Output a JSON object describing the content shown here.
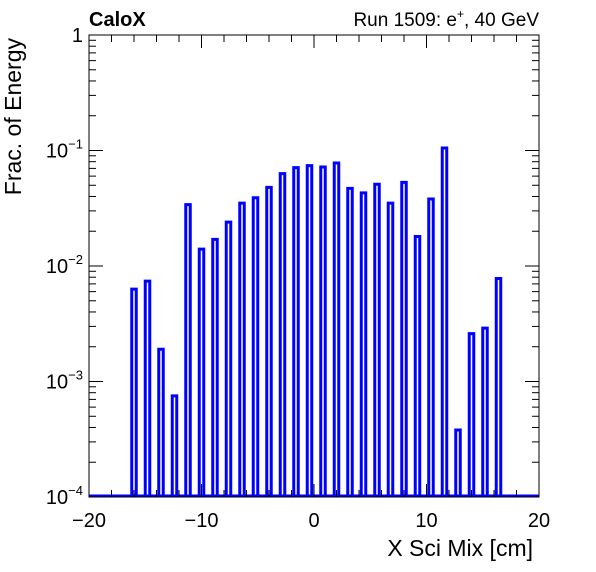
{
  "chart_data": {
    "type": "bar",
    "header_left": "CaloX",
    "header_right_prefix": "Run 1509: e",
    "header_right_sup": "+",
    "header_right_suffix": ", 40 GeV",
    "xlabel": "X Sci Mix [cm]",
    "ylabel": "Frac. of Energy",
    "xlim": [
      -20,
      20
    ],
    "ylim": [
      0.0001,
      1
    ],
    "yscale": "log",
    "xticks": [
      {
        "value": -20,
        "label": "−20"
      },
      {
        "value": -10,
        "label": "−10"
      },
      {
        "value": 0,
        "label": "0"
      },
      {
        "value": 10,
        "label": "10"
      },
      {
        "value": 20,
        "label": "20"
      }
    ],
    "yticks": [
      {
        "value": 1,
        "base": "1",
        "exp": ""
      },
      {
        "value": 0.1,
        "base": "10",
        "exp": "−1"
      },
      {
        "value": 0.01,
        "base": "10",
        "exp": "−2"
      },
      {
        "value": 0.001,
        "base": "10",
        "exp": "−3"
      },
      {
        "value": 0.0001,
        "base": "10",
        "exp": "−4"
      }
    ],
    "bar_width_cm": 0.4,
    "bins": [
      {
        "x": -16.0,
        "y": 0.0063
      },
      {
        "x": -14.8,
        "y": 0.0074
      },
      {
        "x": -13.6,
        "y": 0.0019
      },
      {
        "x": -12.4,
        "y": 0.00075
      },
      {
        "x": -11.2,
        "y": 0.034
      },
      {
        "x": -10.0,
        "y": 0.014
      },
      {
        "x": -8.8,
        "y": 0.017
      },
      {
        "x": -7.6,
        "y": 0.024
      },
      {
        "x": -6.4,
        "y": 0.035
      },
      {
        "x": -5.2,
        "y": 0.039
      },
      {
        "x": -4.0,
        "y": 0.048
      },
      {
        "x": -2.8,
        "y": 0.063
      },
      {
        "x": -1.6,
        "y": 0.071
      },
      {
        "x": -0.4,
        "y": 0.074
      },
      {
        "x": 0.8,
        "y": 0.072
      },
      {
        "x": 2.0,
        "y": 0.078
      },
      {
        "x": 3.2,
        "y": 0.047
      },
      {
        "x": 4.4,
        "y": 0.043
      },
      {
        "x": 5.6,
        "y": 0.051
      },
      {
        "x": 6.8,
        "y": 0.035
      },
      {
        "x": 8.0,
        "y": 0.053
      },
      {
        "x": 9.2,
        "y": 0.018
      },
      {
        "x": 10.4,
        "y": 0.038
      },
      {
        "x": 11.6,
        "y": 0.105
      },
      {
        "x": 12.8,
        "y": 0.00038
      },
      {
        "x": 14.0,
        "y": 0.0026
      },
      {
        "x": 15.2,
        "y": 0.0029
      },
      {
        "x": 16.4,
        "y": 0.0078
      }
    ],
    "bar_color": "#0000ff",
    "grid": false,
    "legend": "none"
  }
}
